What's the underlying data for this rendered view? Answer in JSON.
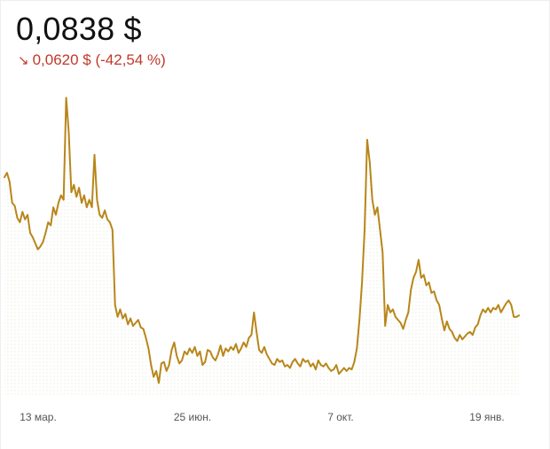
{
  "header": {
    "price": "0,0838 $",
    "change_arrow": "↘",
    "change_text": "0,0620 $ (-42,54 %)"
  },
  "colors": {
    "line": "#b8861b",
    "change_negative": "#c0392b",
    "axis_text": "#555555"
  },
  "chart_data": {
    "type": "area",
    "title": "",
    "xlabel": "",
    "ylabel": "",
    "x_ticks": [
      "13 мар.",
      "25 июн.",
      "7 окт.",
      "19 янв."
    ],
    "grid": false,
    "ylim": [
      0.03,
      0.24
    ],
    "series": [
      {
        "values": [
          0.175,
          0.178,
          0.172,
          0.158,
          0.156,
          0.148,
          0.145,
          0.152,
          0.147,
          0.15,
          0.138,
          0.135,
          0.131,
          0.127,
          0.129,
          0.132,
          0.138,
          0.145,
          0.143,
          0.155,
          0.15,
          0.158,
          0.163,
          0.16,
          0.228,
          0.205,
          0.165,
          0.17,
          0.162,
          0.168,
          0.158,
          0.163,
          0.155,
          0.16,
          0.155,
          0.19,
          0.16,
          0.15,
          0.148,
          0.153,
          0.147,
          0.145,
          0.14,
          0.09,
          0.082,
          0.087,
          0.081,
          0.084,
          0.077,
          0.081,
          0.076,
          0.078,
          0.08,
          0.075,
          0.074,
          0.068,
          0.061,
          0.05,
          0.042,
          0.046,
          0.038,
          0.051,
          0.052,
          0.046,
          0.05,
          0.06,
          0.065,
          0.056,
          0.051,
          0.053,
          0.059,
          0.057,
          0.061,
          0.058,
          0.062,
          0.056,
          0.059,
          0.05,
          0.052,
          0.06,
          0.059,
          0.055,
          0.053,
          0.057,
          0.063,
          0.056,
          0.061,
          0.059,
          0.062,
          0.06,
          0.064,
          0.058,
          0.061,
          0.065,
          0.062,
          0.068,
          0.07,
          0.085,
          0.072,
          0.06,
          0.058,
          0.062,
          0.057,
          0.054,
          0.051,
          0.05,
          0.054,
          0.052,
          0.053,
          0.049,
          0.05,
          0.048,
          0.052,
          0.054,
          0.051,
          0.049,
          0.054,
          0.052,
          0.053,
          0.049,
          0.051,
          0.047,
          0.053,
          0.05,
          0.049,
          0.051,
          0.048,
          0.046,
          0.047,
          0.05,
          0.044,
          0.046,
          0.048,
          0.046,
          0.048,
          0.047,
          0.052,
          0.061,
          0.08,
          0.105,
          0.14,
          0.2,
          0.185,
          0.16,
          0.15,
          0.155,
          0.14,
          0.125,
          0.076,
          0.09,
          0.085,
          0.087,
          0.082,
          0.08,
          0.078,
          0.074,
          0.08,
          0.085,
          0.1,
          0.108,
          0.112,
          0.12,
          0.108,
          0.11,
          0.103,
          0.105,
          0.098,
          0.099,
          0.093,
          0.09,
          0.081,
          0.073,
          0.079,
          0.074,
          0.072,
          0.068,
          0.066,
          0.07,
          0.067,
          0.069,
          0.071,
          0.072,
          0.07,
          0.075,
          0.077,
          0.083,
          0.087,
          0.085,
          0.088,
          0.085,
          0.088,
          0.087,
          0.09,
          0.085,
          0.088,
          0.091,
          0.093,
          0.09,
          0.082,
          0.082,
          0.083
        ]
      }
    ]
  }
}
